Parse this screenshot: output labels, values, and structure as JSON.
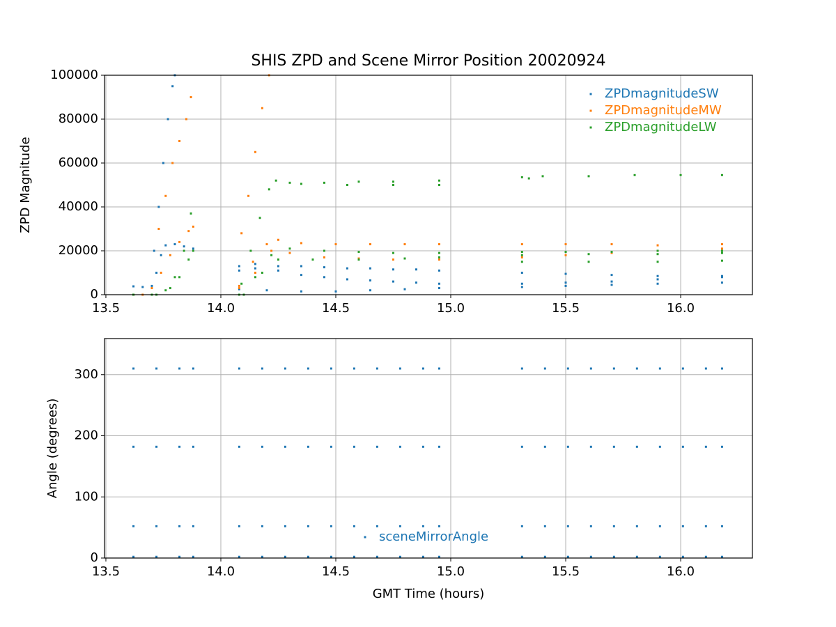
{
  "chart_data": [
    {
      "type": "scatter",
      "title": "SHIS ZPD and Scene Mirror Position 20020924",
      "ylabel": "ZPD Magnitude",
      "xlim": [
        13.494,
        16.312
      ],
      "ylim": [
        0,
        100000
      ],
      "xticks": [
        13.5,
        {
          "value": 14,
          "label": "14.0"
        },
        14.5,
        {
          "value": 15,
          "label": "15.0"
        },
        15.5,
        {
          "value": 16,
          "label": "16.0"
        }
      ],
      "yticks": [
        0,
        20000,
        40000,
        60000,
        80000,
        100000
      ],
      "grid": true,
      "legend": "upper right",
      "series": [
        {
          "name": "ZPDmagnitudeSW",
          "color": "#1f77b4",
          "x": [
            13.62,
            13.66,
            13.7,
            13.72,
            13.74,
            13.76,
            13.8,
            13.84,
            13.88,
            13.71,
            13.73,
            13.75,
            13.77,
            13.79,
            13.8,
            14.08,
            14.15,
            14.25,
            14.35,
            14.45,
            14.55,
            14.65,
            14.75,
            14.85,
            14.95,
            14.08,
            14.15,
            14.25,
            14.35,
            14.45,
            14.55,
            14.65,
            14.75,
            14.85,
            14.95,
            14.08,
            14.2,
            14.35,
            14.5,
            14.65,
            14.8,
            14.95,
            15.31,
            15.5,
            15.7,
            15.9,
            16.18,
            15.31,
            15.5,
            15.7,
            15.9,
            16.18,
            15.31,
            15.5,
            15.7,
            15.9,
            16.18
          ],
          "values": [
            3800,
            3500,
            4000,
            10000,
            18000,
            22500,
            23000,
            22000,
            21000,
            20000,
            40000,
            60000,
            80000,
            95000,
            100000,
            11000,
            12000,
            13000,
            13000,
            12500,
            12000,
            12000,
            11500,
            11500,
            11000,
            13000,
            14000,
            11000,
            9000,
            8000,
            7000,
            6500,
            6000,
            5500,
            5000,
            2500,
            2000,
            1500,
            1500,
            2000,
            2500,
            3000,
            10000,
            9500,
            9000,
            8500,
            8000,
            5000,
            5500,
            6000,
            7000,
            8500,
            3500,
            4000,
            4500,
            5000,
            5500
          ]
        },
        {
          "name": "ZPDmagnitudeMW",
          "color": "#ff7f0e",
          "x": [
            13.73,
            13.76,
            13.79,
            13.82,
            13.85,
            13.87,
            13.62,
            13.66,
            13.7,
            13.74,
            13.78,
            13.82,
            13.86,
            13.88,
            14.09,
            14.12,
            14.15,
            14.18,
            14.21,
            14.08,
            14.14,
            14.2,
            14.25,
            14.35,
            14.5,
            14.65,
            14.8,
            14.95,
            14.08,
            14.15,
            14.22,
            14.3,
            14.45,
            14.6,
            14.75,
            14.95,
            15.31,
            15.5,
            15.7,
            15.9,
            16.18,
            15.31,
            15.5,
            15.7,
            15.9,
            16.18
          ],
          "values": [
            30000,
            45000,
            60000,
            70000,
            80000,
            90000,
            0,
            0,
            3000,
            10000,
            18000,
            24000,
            29000,
            31000,
            28000,
            45000,
            65000,
            85000,
            100000,
            4000,
            15000,
            23000,
            25000,
            23500,
            23000,
            23000,
            23000,
            23000,
            3000,
            10000,
            20000,
            19000,
            17000,
            16500,
            16000,
            16000,
            23000,
            23000,
            23000,
            22500,
            23000,
            17000,
            18000,
            19000,
            20000,
            21000
          ]
        },
        {
          "name": "ZPDmagnitudeLW",
          "color": "#2ca02c",
          "x": [
            13.62,
            13.7,
            13.76,
            13.8,
            13.84,
            13.87,
            13.62,
            13.72,
            13.78,
            13.82,
            13.86,
            13.88,
            14.09,
            14.13,
            14.17,
            14.21,
            14.24,
            14.3,
            14.45,
            14.6,
            14.75,
            14.95,
            14.35,
            14.55,
            14.75,
            14.95,
            14.08,
            14.15,
            14.22,
            14.3,
            14.45,
            14.6,
            14.75,
            14.95,
            14.1,
            14.18,
            14.25,
            14.4,
            14.6,
            14.8,
            14.95,
            15.31,
            15.34,
            15.4,
            15.6,
            15.8,
            16.0,
            16.18,
            15.31,
            15.5,
            15.7,
            15.9,
            16.18,
            15.31,
            15.6,
            15.9,
            16.18,
            15.31,
            15.6,
            15.9,
            16.18
          ],
          "values": [
            0,
            0,
            2000,
            8000,
            20000,
            37000,
            0,
            0,
            3000,
            8000,
            16000,
            20000,
            5000,
            20000,
            35000,
            48000,
            52000,
            51000,
            51000,
            51500,
            51500,
            52000,
            50500,
            50000,
            50000,
            50000,
            0,
            8000,
            18000,
            21000,
            20000,
            19500,
            19000,
            19000,
            0,
            10000,
            16000,
            16000,
            16000,
            16500,
            17000,
            53500,
            53000,
            54000,
            54000,
            54500,
            54500,
            54500,
            19500,
            19500,
            19500,
            20000,
            20000,
            18000,
            18500,
            18500,
            19000,
            15000,
            15000,
            15000,
            15500
          ]
        }
      ]
    },
    {
      "type": "scatter",
      "ylabel": "Angle (degrees)",
      "xlabel": "GMT Time (hours)",
      "xlim": [
        13.494,
        16.312
      ],
      "ylim": [
        0,
        359
      ],
      "xticks": [
        13.5,
        {
          "value": 14,
          "label": "14.0"
        },
        14.5,
        {
          "value": 15,
          "label": "15.0"
        },
        15.5,
        {
          "value": 16,
          "label": "16.0"
        }
      ],
      "yticks": [
        0,
        100,
        200,
        300
      ],
      "grid": true,
      "legend": "lower center",
      "series": [
        {
          "name": "sceneMirrorAngle",
          "color": "#1f77b4",
          "x": [
            13.62,
            13.72,
            13.82,
            13.88,
            14.08,
            14.18,
            14.28,
            14.38,
            14.48,
            14.58,
            14.68,
            14.78,
            14.88,
            14.95,
            15.31,
            15.41,
            15.51,
            15.61,
            15.71,
            15.81,
            15.91,
            16.01,
            16.11,
            16.18,
            13.62,
            13.72,
            13.82,
            13.88,
            14.08,
            14.18,
            14.28,
            14.38,
            14.48,
            14.58,
            14.68,
            14.78,
            14.88,
            14.95,
            15.31,
            15.41,
            15.51,
            15.61,
            15.71,
            15.81,
            15.91,
            16.01,
            16.11,
            16.18,
            13.62,
            13.72,
            13.82,
            13.88,
            14.08,
            14.18,
            14.28,
            14.38,
            14.48,
            14.58,
            14.68,
            14.78,
            14.88,
            14.95,
            15.31,
            15.41,
            15.51,
            15.61,
            15.71,
            15.81,
            15.91,
            16.01,
            16.11,
            16.18,
            13.62,
            13.72,
            13.82,
            13.88,
            14.08,
            14.18,
            14.28,
            14.38,
            14.48,
            14.58,
            14.68,
            14.78,
            14.88,
            14.95,
            15.31,
            15.41,
            15.51,
            15.61,
            15.71,
            15.81,
            15.91,
            16.01,
            16.11,
            16.18
          ],
          "values": [
            310,
            310,
            310,
            310,
            310,
            310,
            310,
            310,
            310,
            310,
            310,
            310,
            310,
            310,
            310,
            310,
            310,
            310,
            310,
            310,
            310,
            310,
            310,
            310,
            182,
            182,
            182,
            182,
            182,
            182,
            182,
            182,
            182,
            182,
            182,
            182,
            182,
            182,
            182,
            182,
            182,
            182,
            182,
            182,
            182,
            182,
            182,
            182,
            52,
            52,
            52,
            52,
            52,
            52,
            52,
            52,
            52,
            52,
            52,
            52,
            52,
            52,
            52,
            52,
            52,
            52,
            52,
            52,
            52,
            52,
            52,
            52,
            2,
            2,
            2,
            2,
            2,
            2,
            2,
            2,
            2,
            2,
            2,
            2,
            2,
            2,
            2,
            2,
            2,
            2,
            2,
            2,
            2,
            2,
            2,
            2
          ]
        }
      ]
    }
  ]
}
